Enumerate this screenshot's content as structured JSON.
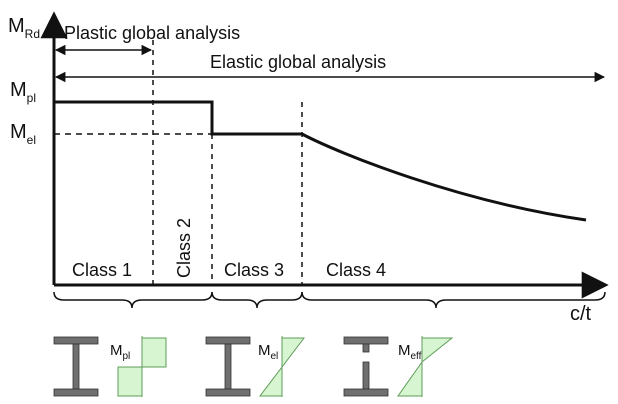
{
  "y_axis": {
    "label": "M",
    "subscript": "Rd"
  },
  "x_axis": {
    "label": "c/t"
  },
  "spans": {
    "plastic": "Plastic global analysis",
    "elastic": "Elastic global analysis"
  },
  "levels": [
    {
      "label": "M",
      "subscript": "pl"
    },
    {
      "label": "M",
      "subscript": "el"
    }
  ],
  "classes": [
    "Class 1",
    "Class 2",
    "Class 3",
    "Class 4"
  ],
  "sections": [
    {
      "label": "M",
      "subscript": "pl"
    },
    {
      "label": "M",
      "subscript": "el"
    },
    {
      "label": "M",
      "subscript": "eff"
    }
  ],
  "colors": {
    "stress_fill": "#d7f5d0",
    "stress_stroke": "#5e9c58",
    "section_fill": "#6f6f6f",
    "line": "#111111"
  }
}
